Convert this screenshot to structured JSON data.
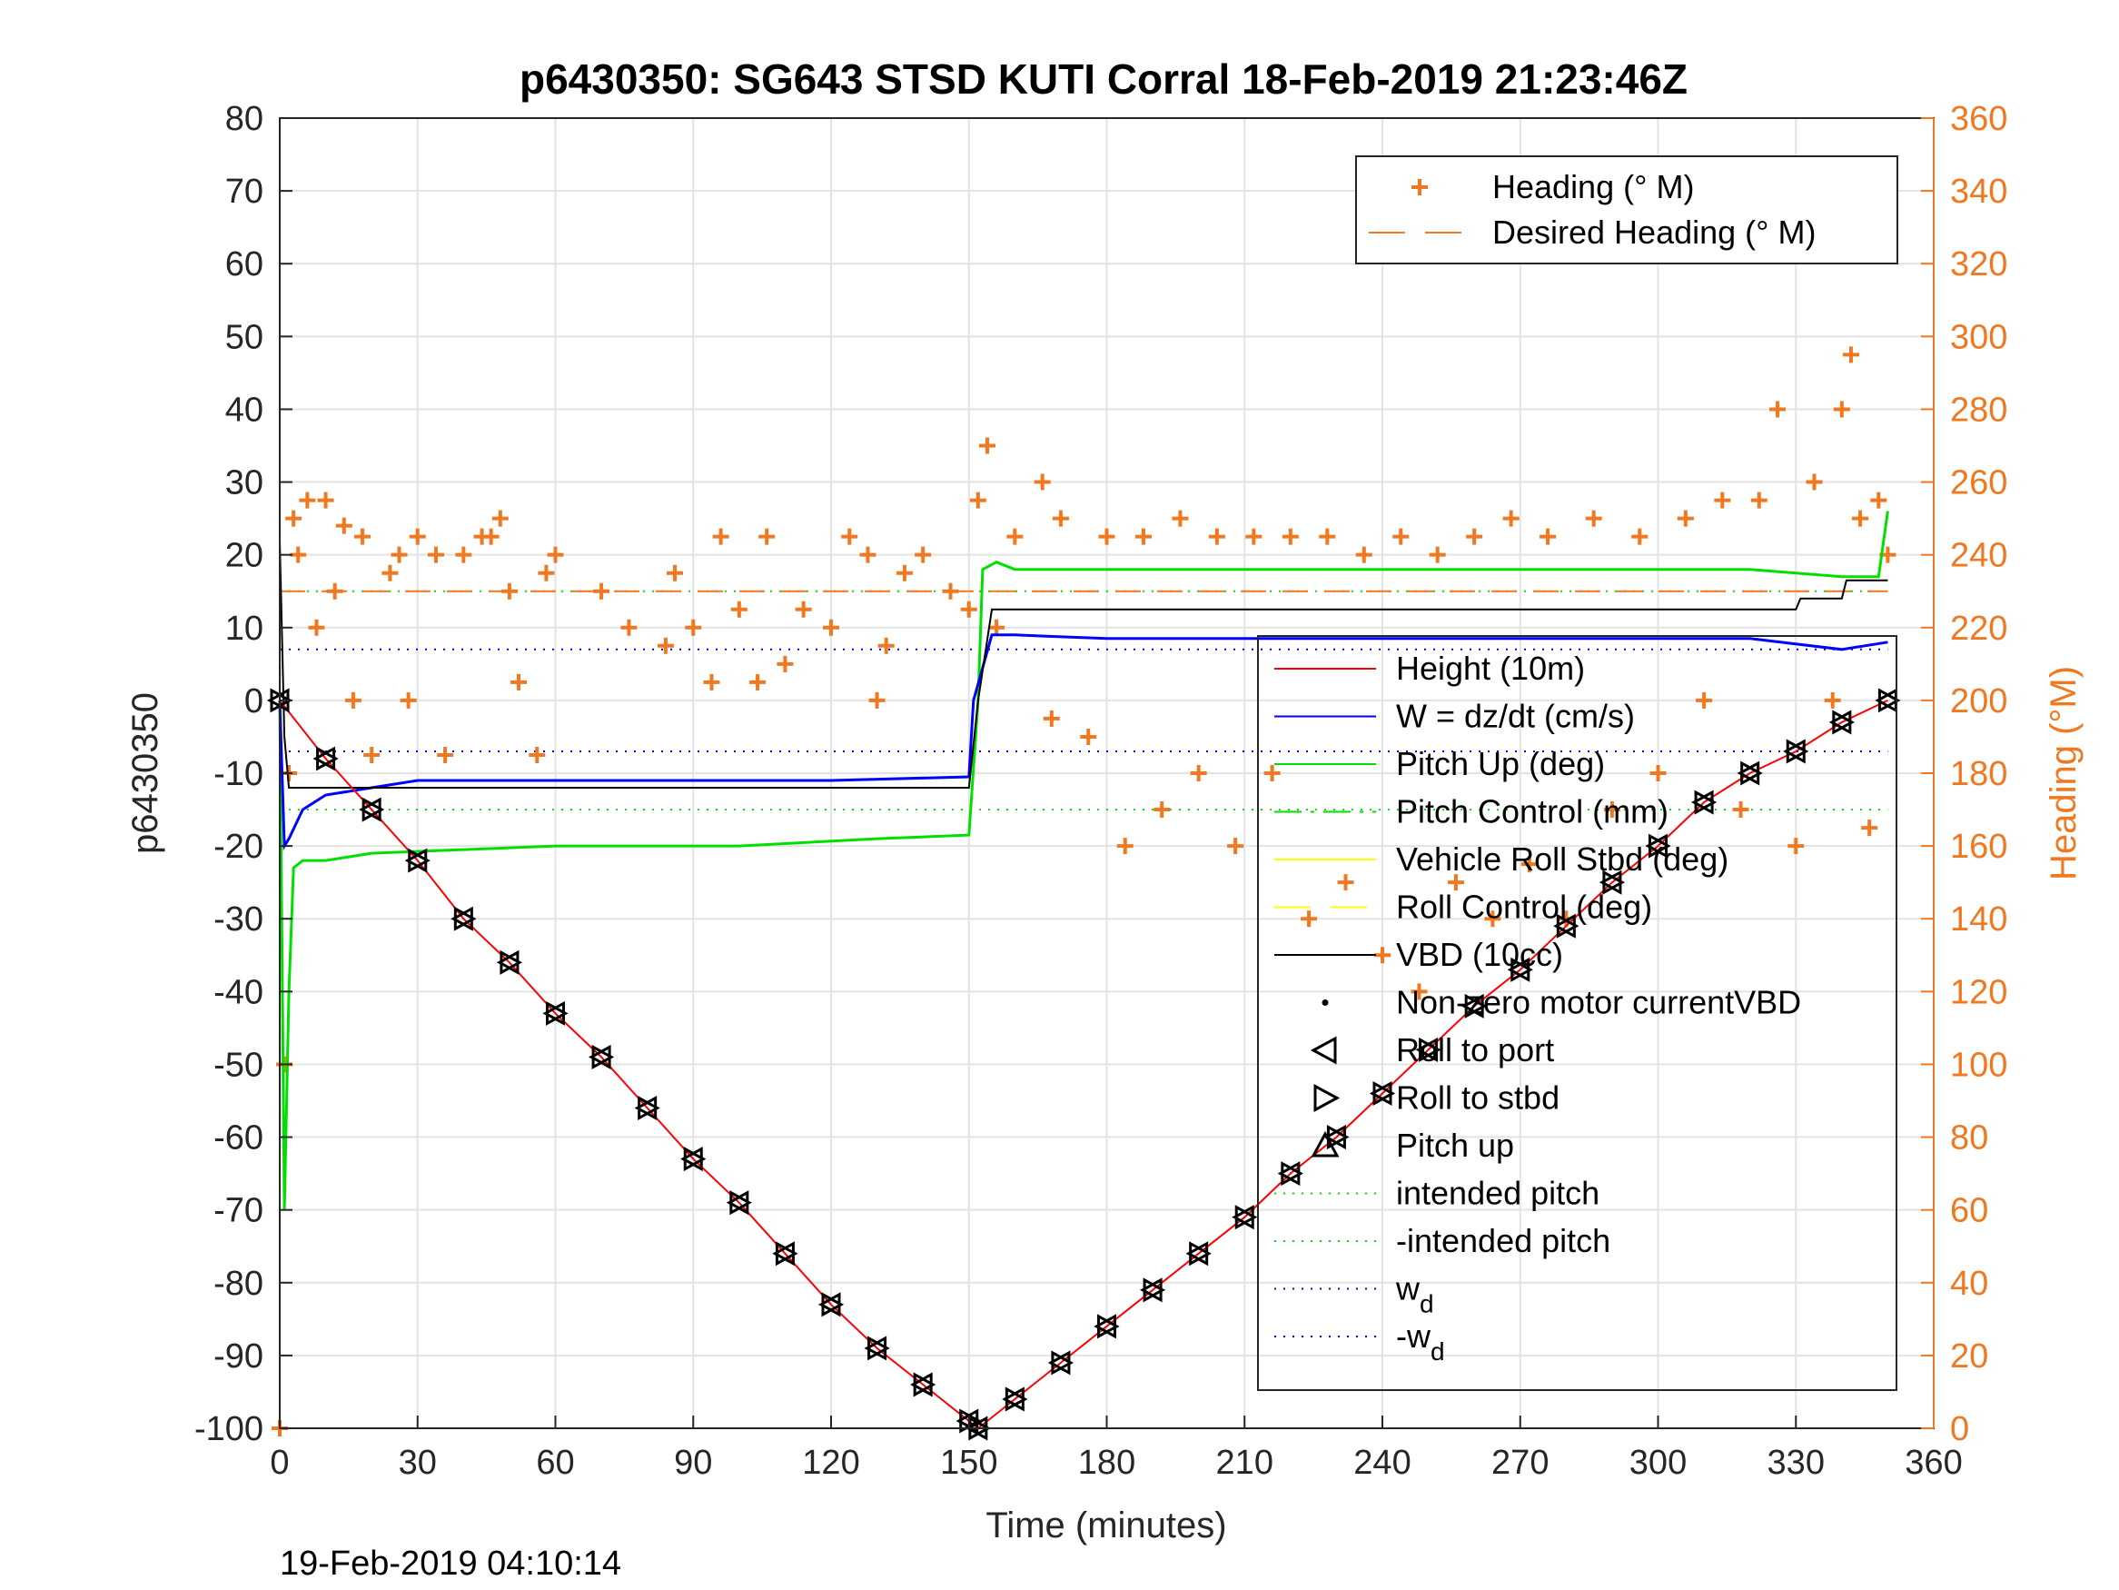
{
  "chart_data": {
    "type": "line",
    "title": "p6430350: SG643 STSD KUTI Corral 18-Feb-2019 21:23:46Z",
    "xlabel": "Time (minutes)",
    "ylabel_left": "p6430350",
    "ylabel_right": "Heading (°M)",
    "xlim": [
      0,
      360
    ],
    "ylim_left": [
      -100,
      80
    ],
    "ylim_right": [
      0,
      360
    ],
    "x_ticks": [
      0,
      30,
      60,
      90,
      120,
      150,
      180,
      210,
      240,
      270,
      300,
      330,
      360
    ],
    "y_ticks_left": [
      80,
      70,
      60,
      50,
      40,
      30,
      20,
      10,
      0,
      -10,
      -20,
      -30,
      -40,
      -50,
      -60,
      -70,
      -80,
      -90,
      -100
    ],
    "y_ticks_right": [
      360,
      340,
      320,
      300,
      280,
      260,
      240,
      220,
      200,
      180,
      160,
      140,
      120,
      100,
      80,
      60,
      40,
      20,
      0
    ],
    "grid": true,
    "timestamp": "19-Feb-2019 04:10:14",
    "colors": {
      "height": "#ff0000",
      "w": "#0000ff",
      "pitch": "#00e000",
      "roll": "#ffff00",
      "vbd": "#000000",
      "heading": "#f07820"
    },
    "legend_right_axis": [
      {
        "label": "Heading (° M)",
        "style": "plus"
      },
      {
        "label": "Desired Heading (° M)",
        "style": "dashed"
      }
    ],
    "legend_left_axis": [
      {
        "label": "Height (10m)",
        "style": "line",
        "color": "#ff0000"
      },
      {
        "label": "W = dz/dt (cm/s)",
        "style": "line",
        "color": "#0000ff"
      },
      {
        "label": "Pitch Up (deg)",
        "style": "line",
        "color": "#00e000"
      },
      {
        "label": "Pitch Control (mm)",
        "style": "dashdot",
        "color": "#00e000"
      },
      {
        "label": "Vehicle Roll Stbd (deg)",
        "style": "line",
        "color": "#ffff00"
      },
      {
        "label": "Roll Control (deg)",
        "style": "dashed",
        "color": "#ffff00"
      },
      {
        "label": "VBD (10cc)",
        "style": "line",
        "color": "#000000"
      },
      {
        "label": "Non-zero motor currentVBD",
        "style": "dot",
        "color": "#000000"
      },
      {
        "label": "Roll to port",
        "style": "tri-left",
        "color": "#000000"
      },
      {
        "label": "Roll to stbd",
        "style": "tri-right",
        "color": "#000000"
      },
      {
        "label": "Pitch up",
        "style": "tri-up",
        "color": "#000000"
      },
      {
        "label": "intended pitch",
        "style": "dotted",
        "color": "#00e000"
      },
      {
        "label": "-intended pitch",
        "style": "dotted",
        "color": "#00e000"
      },
      {
        "label": "w",
        "sub": "d",
        "style": "dotted",
        "color": "#0000ff"
      },
      {
        "label": "-w",
        "sub": "d",
        "style": "dotted",
        "color": "#0000ff"
      }
    ],
    "series": [
      {
        "name": "Height (10m)",
        "axis": "left",
        "x": [
          0,
          10,
          20,
          30,
          40,
          50,
          60,
          70,
          80,
          90,
          100,
          110,
          120,
          130,
          140,
          150,
          152,
          160,
          170,
          180,
          190,
          200,
          210,
          220,
          230,
          240,
          250,
          260,
          270,
          280,
          290,
          300,
          310,
          320,
          330,
          340,
          350
        ],
        "y": [
          0,
          -8,
          -15,
          -22,
          -30,
          -36,
          -43,
          -49,
          -56,
          -63,
          -69,
          -76,
          -83,
          -89,
          -94,
          -99,
          -100,
          -96,
          -91,
          -86,
          -81,
          -76,
          -71,
          -65,
          -60,
          -54,
          -48,
          -42,
          -37,
          -31,
          -25,
          -20,
          -14,
          -10,
          -7,
          -3,
          0
        ]
      },
      {
        "name": "W = dz/dt (cm/s)",
        "axis": "left",
        "x": [
          0,
          1,
          2,
          5,
          10,
          20,
          30,
          60,
          90,
          120,
          150,
          151,
          155,
          160,
          180,
          200,
          240,
          300,
          320,
          340,
          350
        ],
        "y": [
          0,
          -20,
          -19,
          -15,
          -13,
          -12,
          -11,
          -11,
          -11,
          -11,
          -10.5,
          0,
          9,
          9,
          8.5,
          8.5,
          8.5,
          8.5,
          8.5,
          7,
          8
        ]
      },
      {
        "name": "Pitch Up (deg)",
        "axis": "left",
        "x": [
          0,
          1,
          2,
          3,
          5,
          10,
          20,
          60,
          100,
          130,
          150,
          152,
          153,
          156,
          160,
          200,
          250,
          300,
          320,
          340,
          348,
          350
        ],
        "y": [
          0,
          -70,
          -40,
          -23,
          -22,
          -22,
          -21,
          -20,
          -20,
          -19,
          -18.5,
          0,
          18,
          19,
          18,
          18,
          18,
          18,
          18,
          17,
          17,
          26
        ]
      },
      {
        "name": "VBD (10cc)",
        "axis": "left",
        "x": [
          0,
          1,
          2,
          150,
          152,
          155,
          330,
          331,
          340,
          341,
          350
        ],
        "y": [
          22,
          -5,
          -12,
          -12,
          0,
          12.5,
          12.5,
          14,
          14,
          16.5,
          16.5
        ]
      },
      {
        "name": "intended pitch",
        "axis": "left",
        "x": [
          0,
          350
        ],
        "y": [
          15,
          15
        ]
      },
      {
        "name": "-intended pitch",
        "axis": "left",
        "x": [
          0,
          350
        ],
        "y": [
          -15,
          -15
        ]
      },
      {
        "name": "w_d",
        "axis": "left",
        "x": [
          0,
          350
        ],
        "y": [
          7,
          7
        ]
      },
      {
        "name": "-w_d",
        "axis": "left",
        "x": [
          0,
          350
        ],
        "y": [
          -7,
          -7
        ]
      },
      {
        "name": "Desired Heading (° M)",
        "axis": "right",
        "x": [
          0,
          350
        ],
        "y": [
          230,
          230
        ]
      },
      {
        "name": "Heading (° M)",
        "axis": "right",
        "x": [
          0,
          1,
          2,
          3,
          4,
          6,
          8,
          10,
          12,
          14,
          16,
          18,
          20,
          24,
          26,
          28,
          30,
          34,
          36,
          40,
          44,
          46,
          48,
          50,
          52,
          56,
          58,
          60,
          70,
          76,
          84,
          86,
          90,
          94,
          96,
          100,
          104,
          106,
          110,
          114,
          120,
          124,
          128,
          130,
          132,
          136,
          140,
          146,
          150,
          152,
          154,
          156,
          160,
          166,
          168,
          170,
          176,
          180,
          184,
          188,
          192,
          196,
          200,
          204,
          208,
          212,
          216,
          220,
          224,
          228,
          232,
          236,
          240,
          244,
          248,
          252,
          256,
          260,
          264,
          268,
          272,
          276,
          280,
          286,
          290,
          296,
          300,
          306,
          310,
          314,
          318,
          322,
          326,
          330,
          334,
          338,
          340,
          342,
          344,
          346,
          348,
          350
        ],
        "y": [
          0,
          100,
          180,
          250,
          240,
          255,
          220,
          255,
          230,
          248,
          200,
          245,
          185,
          235,
          240,
          200,
          245,
          240,
          185,
          240,
          245,
          245,
          250,
          230,
          205,
          185,
          235,
          240,
          230,
          220,
          215,
          235,
          220,
          205,
          245,
          225,
          205,
          245,
          210,
          225,
          220,
          245,
          240,
          200,
          215,
          235,
          240,
          230,
          225,
          255,
          270,
          220,
          245,
          260,
          195,
          250,
          190,
          245,
          160,
          245,
          170,
          250,
          180,
          245,
          160,
          245,
          180,
          245,
          140,
          245,
          150,
          240,
          130,
          245,
          120,
          240,
          150,
          245,
          140,
          250,
          155,
          245,
          140,
          250,
          170,
          245,
          180,
          250,
          200,
          255,
          170,
          255,
          280,
          160,
          260,
          200,
          280,
          295,
          250,
          165,
          255,
          240
        ]
      }
    ]
  }
}
